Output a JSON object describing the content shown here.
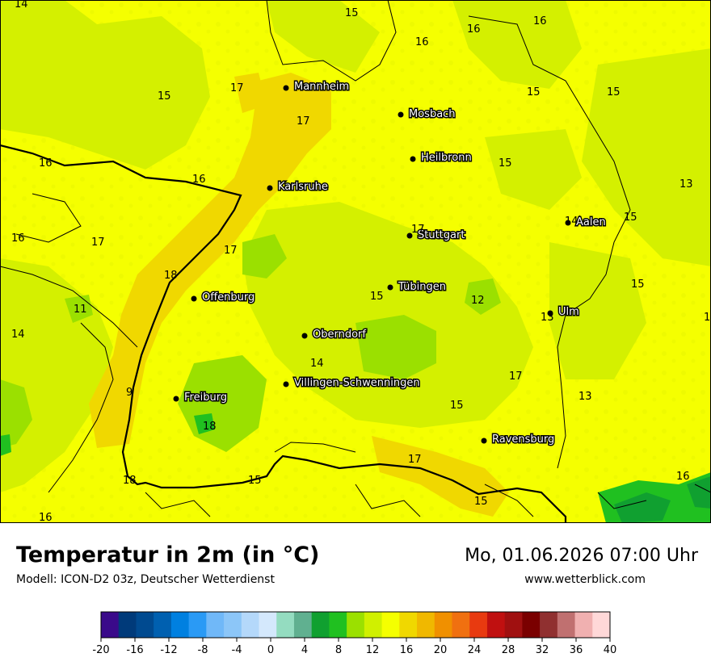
{
  "title": "Temperatur in 2m (in °C)",
  "subtitle": "Modell: ICON-D2 03z, Deutscher Wetterdienst",
  "datetime": "Mo, 01.06.2026 07:00 Uhr",
  "website": "www.wetterblick.com",
  "cities": [
    {
      "name": "Mannheim"
    },
    {
      "name": "Mosbach"
    },
    {
      "name": "Heilbronn"
    },
    {
      "name": "Karlsruhe"
    },
    {
      "name": "Stuttgart"
    },
    {
      "name": "Aalen"
    },
    {
      "name": "Tübingen"
    },
    {
      "name": "Offenburg"
    },
    {
      "name": "Ulm"
    },
    {
      "name": "Oberndorf"
    },
    {
      "name": "Villingen-Schwenningen"
    },
    {
      "name": "Freiburg"
    },
    {
      "name": "Ravensburg"
    }
  ],
  "temperature_labels": [
    "14",
    "15",
    "16",
    "16",
    "16",
    "17",
    "15",
    "15",
    "17",
    "15",
    "16",
    "16",
    "15",
    "13",
    "14",
    "15",
    "16",
    "17",
    "17",
    "17",
    "18",
    "15",
    "12",
    "11",
    "15",
    "13",
    "1",
    "14",
    "14",
    "17",
    "9",
    "13",
    "15",
    "18",
    "17",
    "16",
    "18",
    "15",
    "15"
  ],
  "legend": {
    "ticks": [
      "-20",
      "-16",
      "-12",
      "-8",
      "-4",
      "0",
      "4",
      "8",
      "12",
      "16",
      "20",
      "24",
      "28",
      "32",
      "36",
      "40"
    ],
    "colors": [
      "#3a0a8a",
      "#003a7a",
      "#004a90",
      "#0060b0",
      "#0080e0",
      "#2a9af5",
      "#70b8f8",
      "#8cc6f8",
      "#b4d8fa",
      "#d4e8fc",
      "#94dcc0",
      "#60b090",
      "#10a030",
      "#20c020",
      "#9be000",
      "#d0f000",
      "#f5ff00",
      "#f0d800",
      "#f0b800",
      "#f09000",
      "#f07010",
      "#e83a10",
      "#c01010",
      "#a01010",
      "#7a0000",
      "#903030",
      "#c07070",
      "#f0b0b0",
      "#ffd8d8"
    ]
  }
}
